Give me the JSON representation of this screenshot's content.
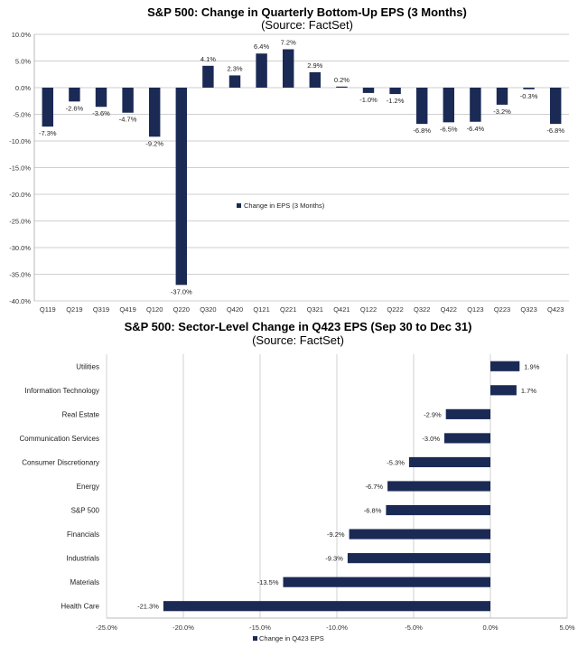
{
  "colors": {
    "bar": "#1b2a55",
    "grid": "#bfbfbf",
    "axis": "#a6a6a6"
  },
  "chart_data": [
    {
      "type": "bar",
      "title": "S&P 500: Change in Quarterly Bottom-Up EPS (3 Months)",
      "subtitle": "(Source: FactSet)",
      "categories": [
        "Q119",
        "Q219",
        "Q319",
        "Q419",
        "Q120",
        "Q220",
        "Q320",
        "Q420",
        "Q121",
        "Q221",
        "Q321",
        "Q421",
        "Q122",
        "Q222",
        "Q322",
        "Q422",
        "Q123",
        "Q223",
        "Q323",
        "Q423"
      ],
      "series": [
        {
          "name": "Change in EPS (3 Months)",
          "values": [
            -7.3,
            -2.6,
            -3.6,
            -4.7,
            -9.2,
            -37.0,
            4.1,
            2.3,
            6.4,
            7.2,
            2.9,
            0.2,
            -1.0,
            -1.2,
            -6.8,
            -6.5,
            -6.4,
            -3.2,
            -0.3,
            -6.8
          ]
        }
      ],
      "data_labels": [
        "-7.3%",
        "-2.6%",
        "-3.6%",
        "-4.7%",
        "-9.2%",
        "-37.0%",
        "4.1%",
        "2.3%",
        "6.4%",
        "7.2%",
        "2.9%",
        "0.2%",
        "-1.0%",
        "-1.2%",
        "-6.8%",
        "-6.5%",
        "-6.4%",
        "-3.2%",
        "-0.3%",
        "-6.8%"
      ],
      "yticks": [
        "10.0%",
        "5.0%",
        "0.0%",
        "-5.0%",
        "-10.0%",
        "-15.0%",
        "-20.0%",
        "-25.0%",
        "-30.0%",
        "-35.0%",
        "-40.0%"
      ],
      "ylim": [
        -40,
        10
      ],
      "grid": "horizontal",
      "legend": "center"
    },
    {
      "type": "bar",
      "orientation": "horizontal",
      "title": "S&P 500: Sector-Level Change in Q423 EPS (Sep 30 to Dec 31)",
      "subtitle": "(Source: FactSet)",
      "categories": [
        "Utilities",
        "Information Technology",
        "Real Estate",
        "Communication Services",
        "Consumer Discretionary",
        "Energy",
        "S&P 500",
        "Financials",
        "Industrials",
        "Materials",
        "Health Care"
      ],
      "series": [
        {
          "name": "Change in Q423 EPS",
          "values": [
            1.9,
            1.7,
            -2.9,
            -3.0,
            -5.3,
            -6.7,
            -6.8,
            -9.2,
            -9.3,
            -13.5,
            -21.3
          ]
        }
      ],
      "data_labels": [
        "1.9%",
        "1.7%",
        "-2.9%",
        "-3.0%",
        "-5.3%",
        "-6.7%",
        "-6.8%",
        "-9.2%",
        "-9.3%",
        "-13.5%",
        "-21.3%"
      ],
      "xticks": [
        "-25.0%",
        "-20.0%",
        "-15.0%",
        "-10.0%",
        "-5.0%",
        "0.0%",
        "5.0%"
      ],
      "xlim": [
        -25,
        5
      ],
      "grid": "vertical",
      "legend": "bottom"
    }
  ]
}
